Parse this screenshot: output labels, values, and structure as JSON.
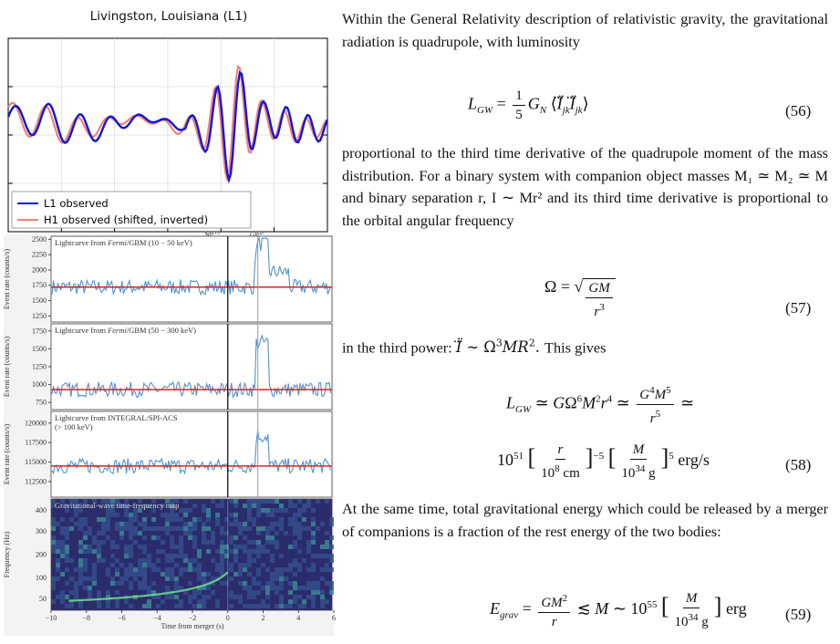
{
  "figure": {
    "title": "Livingston, Louisiana (L1)",
    "legend": [
      "L1 observed",
      "H1 observed (shifted, inverted)"
    ],
    "colors": {
      "l1": "#1016d8",
      "h1": "#f08080",
      "lightcurve": "#3f86c6",
      "baseline": "#e02020",
      "spec_bg": "#2b2c6b"
    },
    "markers": {
      "merger": "Merger",
      "grb": "GRB start"
    },
    "panels": [
      {
        "label_pre": "Lightcurve from ",
        "label_em": "Fermi",
        "label_post": "/GBM (10 − 50 keV)",
        "ticks": [
          "2500",
          "2250",
          "2000",
          "1750",
          "1500",
          "1250"
        ],
        "ylabel": "Event rate (counts/s)",
        "baseline": 1720,
        "ylim": [
          1150,
          2550
        ]
      },
      {
        "label_pre": "Lightcurve from ",
        "label_em": "Fermi",
        "label_post": "/GBM (50 − 300 keV)",
        "ticks": [
          "1750",
          "1500",
          "1250",
          "1000",
          "750"
        ],
        "ylabel": "Event rate (counts/s)",
        "baseline": 930,
        "ylim": [
          650,
          1850
        ]
      },
      {
        "label_pre": "Lightcurve from INTEGRAL/SPI-ACS",
        "label_em": "",
        "label_post": "",
        "label2": "(> 100 keV)",
        "ticks": [
          "120000",
          "117500",
          "115000",
          "112500"
        ],
        "ylabel": "Event rate (counts/s)",
        "baseline": 114500,
        "ylim": [
          110500,
          121500
        ]
      },
      {
        "label_pre": "Gravitational-wave time-frequency map",
        "label_em": "",
        "label_post": "",
        "ticks": [
          "400",
          "300",
          "200",
          "100",
          "50"
        ],
        "ylabel": "Frequency (Hz)"
      }
    ],
    "xticks": [
      "−10",
      "−8",
      "−6",
      "−4",
      "−2",
      "0",
      "2",
      "4",
      "6"
    ],
    "xlabel": "Time from merger (s)"
  },
  "text": {
    "p1": "Within the General Relativity description of relativistic gravity, the gravitational radiation is quadrupole, with luminosity",
    "p2": "proportional to the third time derivative of the quadrupole moment of the mass distribution. For a binary system with companion object masses M₁ ≃ M₂ ≃ M and binary separation r, I ∼ Mr² and its third time derivative is proportional to the orbital angular frequency",
    "p3": "in the third power:",
    "p3b": "This gives",
    "p4": "At the same time, total gravitational energy which could be released by a merger of companions is a fraction of the rest energy of the two bodies:"
  },
  "equations": {
    "n56": "(56)",
    "n57": "(57)",
    "n58": "(58)",
    "n59": "(59)"
  }
}
